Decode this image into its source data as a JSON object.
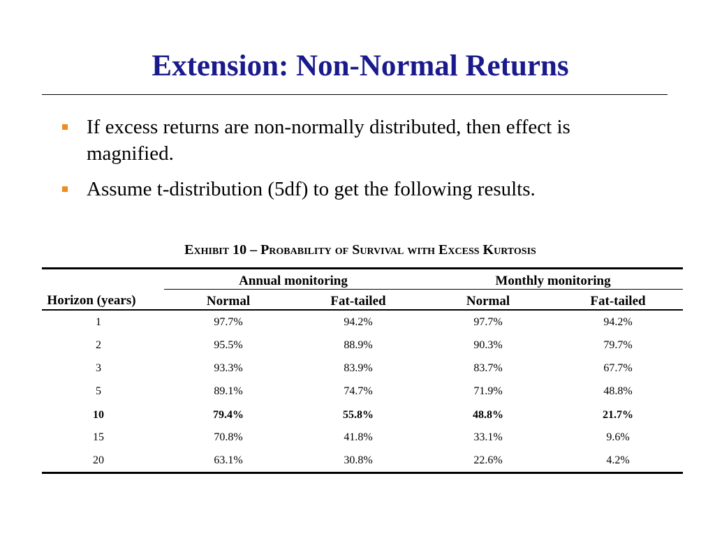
{
  "slide": {
    "title": "Extension: Non-Normal Returns",
    "bullets": [
      "If excess returns are non-normally distributed, then effect is magnified.",
      "Assume t-distribution (5df) to get the following results."
    ],
    "bullet_color": "#f08a1c",
    "title_color": "#1a1a8c"
  },
  "exhibit": {
    "title": "Exhibit 10 – Probability of Survival with Excess Kurtosis",
    "group_headers": [
      "Annual monitoring",
      "Monthly monitoring"
    ],
    "row_header": "Horizon (years)",
    "column_headers": [
      "Normal",
      "Fat-tailed",
      "Normal",
      "Fat-tailed"
    ],
    "rows": [
      {
        "horizon": "1",
        "values": [
          "97.7%",
          "94.2%",
          "97.7%",
          "94.2%"
        ],
        "bold": false
      },
      {
        "horizon": "2",
        "values": [
          "95.5%",
          "88.9%",
          "90.3%",
          "79.7%"
        ],
        "bold": false
      },
      {
        "horizon": "3",
        "values": [
          "93.3%",
          "83.9%",
          "83.7%",
          "67.7%"
        ],
        "bold": false
      },
      {
        "horizon": "5",
        "values": [
          "89.1%",
          "74.7%",
          "71.9%",
          "48.8%"
        ],
        "bold": false
      },
      {
        "horizon": "10",
        "values": [
          "79.4%",
          "55.8%",
          "48.8%",
          "21.7%"
        ],
        "bold": true
      },
      {
        "horizon": "15",
        "values": [
          "70.8%",
          "41.8%",
          "33.1%",
          "9.6%"
        ],
        "bold": false
      },
      {
        "horizon": "20",
        "values": [
          "63.1%",
          "30.8%",
          "22.6%",
          "4.2%"
        ],
        "bold": false
      }
    ]
  }
}
